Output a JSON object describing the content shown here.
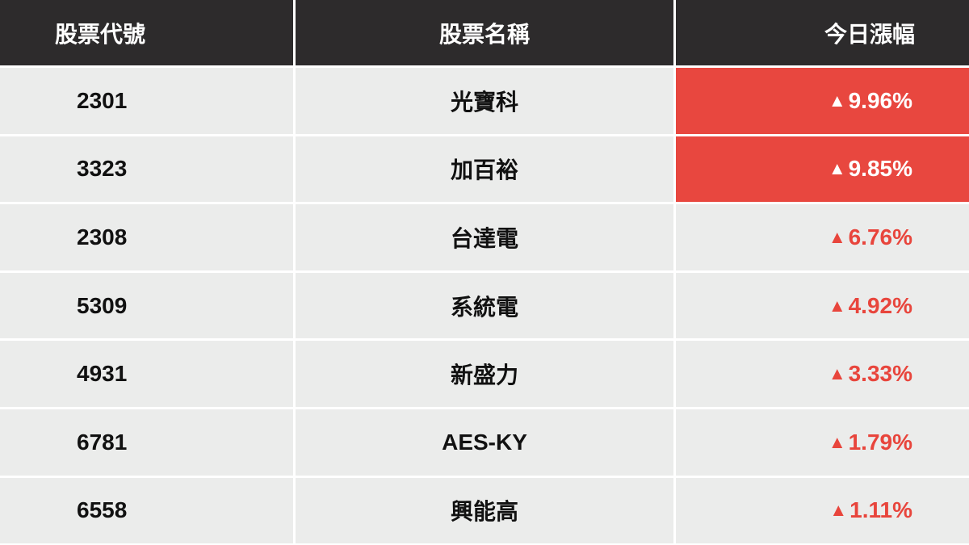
{
  "headers": {
    "code": "股票代號",
    "name": "股票名稱",
    "change": "今日漲幅"
  },
  "colors": {
    "header_bg": "#2d2b2c",
    "row_bg": "#ebeceb",
    "up_red": "#e8453c"
  },
  "up_icon": "▲",
  "rows": [
    {
      "code": "2301",
      "name": "光寶科",
      "change": "9.96%",
      "highlight": true
    },
    {
      "code": "3323",
      "name": "加百裕",
      "change": "9.85%",
      "highlight": true
    },
    {
      "code": "2308",
      "name": "台達電",
      "change": "6.76%",
      "highlight": false
    },
    {
      "code": "5309",
      "name": "系統電",
      "change": "4.92%",
      "highlight": false
    },
    {
      "code": "4931",
      "name": "新盛力",
      "change": "3.33%",
      "highlight": false
    },
    {
      "code": "6781",
      "name": "AES-KY",
      "change": "1.79%",
      "highlight": false
    },
    {
      "code": "6558",
      "name": "興能高",
      "change": "1.11%",
      "highlight": false
    }
  ]
}
